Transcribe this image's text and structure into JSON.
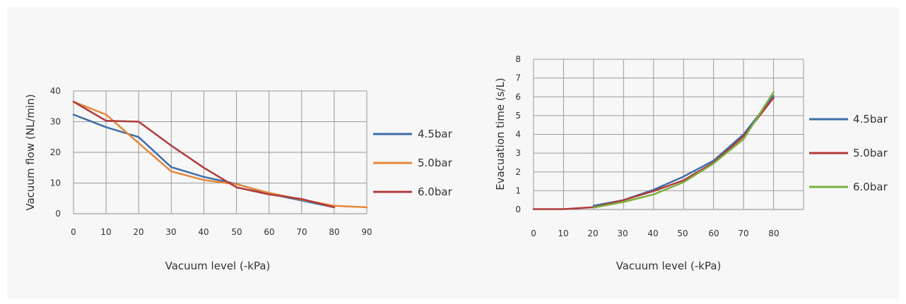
{
  "chart_data": [
    {
      "type": "line",
      "xlabel": "Vacuum level (-kPa)",
      "ylabel": "Vacuum flow (NL/min)",
      "xlim": [
        0,
        90
      ],
      "ylim": [
        0,
        40
      ],
      "xticks": [
        "0",
        "10",
        "20",
        "30",
        "40",
        "50",
        "60",
        "70",
        "80",
        "90"
      ],
      "yticks": [
        "0",
        "10",
        "20",
        "30",
        "40"
      ],
      "grid": true,
      "legend_position": "right",
      "series": [
        {
          "name": "4.5bar",
          "color": "#3e6ea8",
          "x": [
            0,
            10,
            20,
            30,
            40,
            50,
            60,
            70,
            80
          ],
          "y": [
            32.3,
            28.2,
            25,
            15.2,
            12,
            9.7,
            6.5,
            4.3,
            2.1
          ]
        },
        {
          "name": "5.0bar",
          "color": "#e8873a",
          "x": [
            0,
            10,
            20,
            30,
            40,
            50,
            60,
            70,
            80,
            90
          ],
          "y": [
            36.5,
            32.3,
            23,
            13.8,
            11,
            9.6,
            6.8,
            4.6,
            2.6,
            2.1
          ]
        },
        {
          "name": "6.0bar",
          "color": "#b03a3a",
          "x": [
            0,
            10,
            20,
            30,
            40,
            50,
            60,
            70,
            80
          ],
          "y": [
            36.5,
            30.3,
            30,
            22.2,
            15,
            8.6,
            6.3,
            4.8,
            2.1
          ]
        }
      ]
    },
    {
      "type": "line",
      "xlabel": "Vacuum level (-kPa)",
      "ylabel": "Evacuation time (s/L)",
      "xlim": [
        0,
        90
      ],
      "ylim": [
        0,
        8
      ],
      "xticks": [
        "0",
        "10",
        "20",
        "30",
        "40",
        "50",
        "60",
        "70",
        "80"
      ],
      "yticks": [
        "0",
        "1",
        "2",
        "3",
        "4",
        "5",
        "6",
        "7",
        "8"
      ],
      "grid": true,
      "legend_position": "right",
      "series": [
        {
          "name": "4.5bar",
          "color": "#3e6ea8",
          "x": [
            20,
            30,
            40,
            50,
            60,
            70,
            80
          ],
          "y": [
            0.2,
            0.5,
            1.05,
            1.75,
            2.6,
            4,
            6.05
          ]
        },
        {
          "name": "5.0bar",
          "color": "#b03a3a",
          "x": [
            0,
            10,
            20,
            30,
            40,
            50,
            60,
            70,
            80
          ],
          "y": [
            0.02,
            0.02,
            0.12,
            0.5,
            0.98,
            1.55,
            2.5,
            3.9,
            5.95
          ]
        },
        {
          "name": "6.0bar",
          "color": "#7ab03e",
          "x": [
            20,
            30,
            40,
            50,
            60,
            70,
            80
          ],
          "y": [
            0.1,
            0.4,
            0.8,
            1.45,
            2.45,
            3.75,
            6.25
          ]
        }
      ]
    }
  ]
}
